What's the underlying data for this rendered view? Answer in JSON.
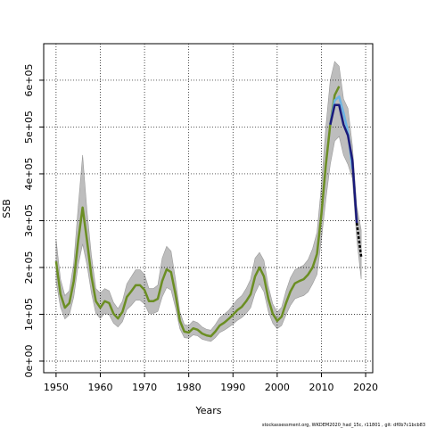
{
  "chart_data": {
    "type": "line",
    "x_label": "Years",
    "y_label": "SSB",
    "footer": "stockassessment.org, WKDEM2020_had_15c, r11801 , git: df0b7c1bcb83",
    "x": [
      1950,
      1951,
      1952,
      1953,
      1954,
      1955,
      1956,
      1957,
      1958,
      1959,
      1960,
      1961,
      1962,
      1963,
      1964,
      1965,
      1966,
      1967,
      1968,
      1969,
      1970,
      1971,
      1972,
      1973,
      1974,
      1975,
      1976,
      1977,
      1978,
      1979,
      1980,
      1981,
      1982,
      1983,
      1984,
      1985,
      1986,
      1987,
      1988,
      1989,
      1990,
      1991,
      1992,
      1993,
      1994,
      1995,
      1996,
      1997,
      1998,
      1999,
      2000,
      2001,
      2002,
      2003,
      2004,
      2005,
      2006,
      2007,
      2008,
      2009,
      2010,
      2011,
      2012,
      2013,
      2014,
      2015,
      2016,
      2017,
      2018,
      2019
    ],
    "band": {
      "color": "#bdbdbd",
      "upper": [
        260000,
        175000,
        140000,
        150000,
        210000,
        330000,
        440000,
        320000,
        225000,
        155000,
        145000,
        155000,
        150000,
        125000,
        112000,
        128000,
        165000,
        180000,
        195000,
        195000,
        185000,
        155000,
        155000,
        162000,
        220000,
        245000,
        235000,
        175000,
        105000,
        78000,
        76000,
        86000,
        82000,
        73000,
        68000,
        66000,
        78000,
        93000,
        100000,
        108000,
        120000,
        132000,
        140000,
        155000,
        175000,
        220000,
        232000,
        215000,
        160000,
        122000,
        105000,
        115000,
        150000,
        178000,
        195000,
        200000,
        205000,
        217000,
        240000,
        275000,
        375000,
        500000,
        600000,
        640000,
        630000,
        560000,
        540000,
        460000,
        330000,
        280000
      ],
      "lower": [
        170000,
        115000,
        90000,
        99000,
        137000,
        205000,
        250000,
        205000,
        145000,
        102000,
        91000,
        102000,
        99000,
        81000,
        73000,
        84000,
        110000,
        119000,
        130000,
        130000,
        122000,
        102000,
        102000,
        106000,
        137000,
        157000,
        152000,
        114000,
        69000,
        50000,
        49000,
        56000,
        54000,
        47000,
        44000,
        42000,
        50000,
        61000,
        66000,
        72000,
        79000,
        87000,
        93000,
        102000,
        114000,
        145000,
        165000,
        148000,
        106000,
        81000,
        69000,
        76000,
        99000,
        119000,
        133000,
        137000,
        140000,
        148000,
        165000,
        185000,
        260000,
        345000,
        420000,
        470000,
        480000,
        440000,
        420000,
        390000,
        260000,
        175000
      ]
    },
    "series": [
      {
        "color": "#6b8e23",
        "values": [
          213000,
          143000,
          114000,
          124000,
          171000,
          257000,
          328000,
          257000,
          181000,
          128000,
          114000,
          128000,
          124000,
          101000,
          91000,
          105000,
          137000,
          149000,
          162000,
          162000,
          152000,
          128000,
          128000,
          133000,
          171000,
          196000,
          190000,
          143000,
          86000,
          63000,
          61000,
          70000,
          67000,
          59000,
          55000,
          53000,
          63000,
          76000,
          82000,
          90000,
          99000,
          109000,
          116000,
          128000,
          143000,
          181000,
          200000,
          181000,
          133000,
          101000,
          86000,
          95000,
          124000,
          149000,
          166000,
          171000,
          175000,
          185000,
          200000,
          229000,
          314000,
          419000,
          505000,
          568000,
          587000,
          null,
          null,
          null,
          null,
          null
        ]
      },
      {
        "color": "#6cb4e4",
        "values": [
          null,
          null,
          null,
          null,
          null,
          null,
          null,
          null,
          null,
          null,
          null,
          null,
          null,
          null,
          null,
          null,
          null,
          null,
          null,
          null,
          null,
          null,
          null,
          null,
          null,
          null,
          null,
          null,
          null,
          null,
          null,
          null,
          null,
          null,
          null,
          null,
          null,
          null,
          null,
          null,
          null,
          null,
          null,
          null,
          null,
          null,
          null,
          null,
          null,
          null,
          null,
          null,
          null,
          null,
          null,
          null,
          null,
          null,
          null,
          null,
          null,
          null,
          505000,
          557000,
          565000,
          530000,
          490000,
          410000,
          null,
          null
        ]
      },
      {
        "color": "#1a1a7a",
        "values": [
          null,
          null,
          null,
          null,
          null,
          null,
          null,
          null,
          null,
          null,
          null,
          null,
          null,
          null,
          null,
          null,
          null,
          null,
          null,
          null,
          null,
          null,
          null,
          null,
          null,
          null,
          null,
          null,
          null,
          null,
          null,
          null,
          null,
          null,
          null,
          null,
          null,
          null,
          null,
          null,
          null,
          null,
          null,
          null,
          null,
          null,
          null,
          null,
          null,
          null,
          null,
          null,
          null,
          null,
          null,
          null,
          null,
          null,
          null,
          null,
          null,
          null,
          505000,
          547000,
          547000,
          505000,
          482000,
          429000,
          295000,
          null
        ]
      },
      {
        "color": "#000000",
        "dashed": true,
        "values": [
          null,
          null,
          null,
          null,
          null,
          null,
          null,
          null,
          null,
          null,
          null,
          null,
          null,
          null,
          null,
          null,
          null,
          null,
          null,
          null,
          null,
          null,
          null,
          null,
          null,
          null,
          null,
          null,
          null,
          null,
          null,
          null,
          null,
          null,
          null,
          null,
          null,
          null,
          null,
          null,
          null,
          null,
          null,
          null,
          null,
          null,
          null,
          null,
          null,
          null,
          null,
          null,
          null,
          null,
          null,
          null,
          null,
          null,
          null,
          null,
          null,
          null,
          null,
          null,
          null,
          null,
          null,
          null,
          295000,
          223000
        ]
      }
    ],
    "xlim": [
      1947.2,
      2021.6
    ],
    "xticks": [
      1950,
      1960,
      1970,
      1980,
      1990,
      2000,
      2010,
      2020
    ],
    "ylim": [
      -24800,
      678000
    ],
    "yticks": [
      {
        "value": 0,
        "label": "0e+00"
      },
      {
        "value": 100000,
        "label": "1e+05"
      },
      {
        "value": 200000,
        "label": "2e+05"
      },
      {
        "value": 300000,
        "label": "3e+05"
      },
      {
        "value": 400000,
        "label": "4e+05"
      },
      {
        "value": 500000,
        "label": "5e+05"
      },
      {
        "value": 600000,
        "label": "6e+05"
      }
    ],
    "grid": true
  }
}
